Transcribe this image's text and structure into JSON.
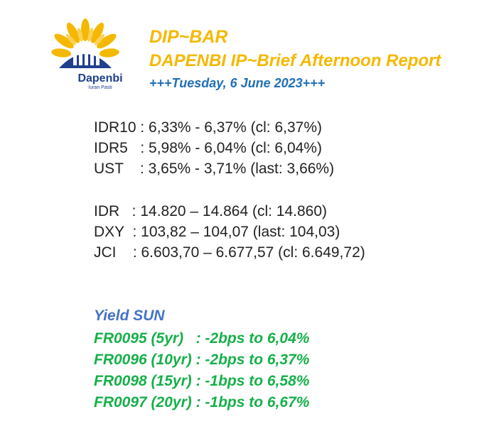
{
  "logo": {
    "name": "Dapenbi",
    "tagline": "Iuran Pasti"
  },
  "header": {
    "title": "DIP~BAR",
    "subtitle": "DAPENBI IP~Brief Afternoon Report",
    "date": "+++Tuesday, 6 June 2023+++"
  },
  "rates": [
    "IDR10 : 6,33% - 6,37% (cl: 6,37%)",
    "IDR5   : 5,98% - 6,04% (cl: 6,04%)",
    "UST    : 3,65% - 3,71% (last: 3,66%)"
  ],
  "markets": [
    "IDR   : 14.820 – 14.864 (cl: 14.860)",
    "DXY  : 103,82 – 104,07 (last: 104,03)",
    "JCI    : 6.603,70 – 6.677,57 (cl: 6.649,72)"
  ],
  "yield_sun": {
    "title": "Yield SUN",
    "items": [
      "FR0095 (5yr)   : -2bps to 6,04%",
      "FR0096 (10yr) : -2bps to 6,37%",
      "FR0098 (15yr) : -1bps to 6,58%",
      "FR0097 (20yr) : -1bps to 6,67%"
    ]
  },
  "colors": {
    "title": "#f5b800",
    "date": "#1f6fb5",
    "yield_title": "#4472c4",
    "yield_items": "#16b04a",
    "logo_blue": "#1f3f8f"
  }
}
